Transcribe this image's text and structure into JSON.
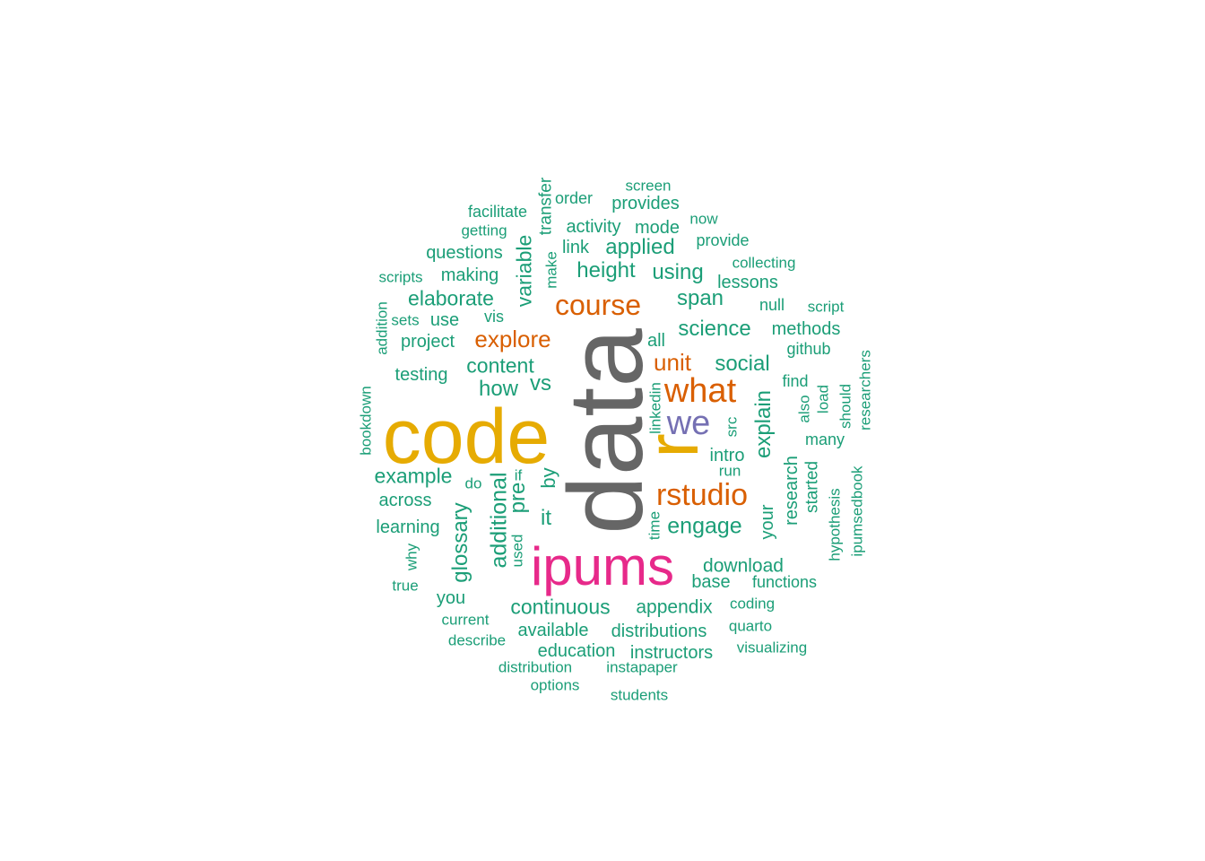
{
  "colors": {
    "green": "#1b9e77",
    "orange": "#d95f02",
    "purple": "#7570b3",
    "magenta": "#e7298a",
    "gold": "#e6ab02",
    "gray": "#666666"
  },
  "words": [
    {
      "text": "data",
      "color": "gray",
      "rotated": true
    },
    {
      "text": "code",
      "color": "gold",
      "rotated": false
    },
    {
      "text": "ipums",
      "color": "magenta",
      "rotated": false
    },
    {
      "text": "r",
      "color": "gold",
      "rotated": true
    },
    {
      "text": "we",
      "color": "purple",
      "rotated": false
    },
    {
      "text": "what",
      "color": "orange",
      "rotated": false
    },
    {
      "text": "rstudio",
      "color": "orange",
      "rotated": false
    },
    {
      "text": "course",
      "color": "orange",
      "rotated": false
    },
    {
      "text": "explore",
      "color": "orange",
      "rotated": false
    },
    {
      "text": "unit",
      "color": "orange",
      "rotated": false
    },
    {
      "text": "engage",
      "color": "green",
      "rotated": false
    },
    {
      "text": "additional",
      "color": "green",
      "rotated": true
    },
    {
      "text": "glossary",
      "color": "green",
      "rotated": true
    },
    {
      "text": "continuous",
      "color": "green",
      "rotated": false
    },
    {
      "text": "appendix",
      "color": "green",
      "rotated": false
    },
    {
      "text": "download",
      "color": "green",
      "rotated": false
    },
    {
      "text": "example",
      "color": "green",
      "rotated": false
    },
    {
      "text": "content",
      "color": "green",
      "rotated": false
    },
    {
      "text": "elaborate",
      "color": "green",
      "rotated": false
    },
    {
      "text": "variable",
      "color": "green",
      "rotated": true
    },
    {
      "text": "applied",
      "color": "green",
      "rotated": false
    },
    {
      "text": "height",
      "color": "green",
      "rotated": false
    },
    {
      "text": "using",
      "color": "green",
      "rotated": false
    },
    {
      "text": "span",
      "color": "green",
      "rotated": false
    },
    {
      "text": "science",
      "color": "green",
      "rotated": false
    },
    {
      "text": "social",
      "color": "green",
      "rotated": false
    },
    {
      "text": "explain",
      "color": "green",
      "rotated": true
    },
    {
      "text": "how",
      "color": "green",
      "rotated": false
    },
    {
      "text": "vs",
      "color": "green",
      "rotated": false
    },
    {
      "text": "pre",
      "color": "green",
      "rotated": true
    },
    {
      "text": "it",
      "color": "green",
      "rotated": false
    },
    {
      "text": "by",
      "color": "green",
      "rotated": true
    },
    {
      "text": "your",
      "color": "green",
      "rotated": true
    },
    {
      "text": "research",
      "color": "green",
      "rotated": true
    },
    {
      "text": "started",
      "color": "green",
      "rotated": true
    },
    {
      "text": "intro",
      "color": "green",
      "rotated": false
    },
    {
      "text": "questions",
      "color": "green",
      "rotated": false
    },
    {
      "text": "making",
      "color": "green",
      "rotated": false
    },
    {
      "text": "project",
      "color": "green",
      "rotated": false
    },
    {
      "text": "testing",
      "color": "green",
      "rotated": false
    },
    {
      "text": "use",
      "color": "green",
      "rotated": false
    },
    {
      "text": "across",
      "color": "green",
      "rotated": false
    },
    {
      "text": "learning",
      "color": "green",
      "rotated": false
    },
    {
      "text": "you",
      "color": "green",
      "rotated": false
    },
    {
      "text": "available",
      "color": "green",
      "rotated": false
    },
    {
      "text": "distributions",
      "color": "green",
      "rotated": false
    },
    {
      "text": "education",
      "color": "green",
      "rotated": false
    },
    {
      "text": "instructors",
      "color": "green",
      "rotated": false
    },
    {
      "text": "base",
      "color": "green",
      "rotated": false
    },
    {
      "text": "methods",
      "color": "green",
      "rotated": false
    },
    {
      "text": "lessons",
      "color": "green",
      "rotated": false
    },
    {
      "text": "provides",
      "color": "green",
      "rotated": false
    },
    {
      "text": "activity",
      "color": "green",
      "rotated": false
    },
    {
      "text": "mode",
      "color": "green",
      "rotated": false
    },
    {
      "text": "link",
      "color": "green",
      "rotated": false
    },
    {
      "text": "provide",
      "color": "green",
      "rotated": false
    },
    {
      "text": "functions",
      "color": "green",
      "rotated": false
    },
    {
      "text": "find",
      "color": "green",
      "rotated": false
    },
    {
      "text": "many",
      "color": "green",
      "rotated": false
    },
    {
      "text": "github",
      "color": "green",
      "rotated": false
    },
    {
      "text": "facilitate",
      "color": "green",
      "rotated": false
    },
    {
      "text": "getting",
      "color": "green",
      "rotated": false
    },
    {
      "text": "transfer",
      "color": "green",
      "rotated": true
    },
    {
      "text": "order",
      "color": "green",
      "rotated": false
    },
    {
      "text": "screen",
      "color": "green",
      "rotated": false
    },
    {
      "text": "now",
      "color": "green",
      "rotated": false
    },
    {
      "text": "collecting",
      "color": "green",
      "rotated": false
    },
    {
      "text": "scripts",
      "color": "green",
      "rotated": false
    },
    {
      "text": "make",
      "color": "green",
      "rotated": true
    },
    {
      "text": "null",
      "color": "green",
      "rotated": false
    },
    {
      "text": "script",
      "color": "green",
      "rotated": false
    },
    {
      "text": "sets",
      "color": "green",
      "rotated": false
    },
    {
      "text": "vis",
      "color": "green",
      "rotated": false
    },
    {
      "text": "all",
      "color": "green",
      "rotated": false
    },
    {
      "text": "addition",
      "color": "green",
      "rotated": true
    },
    {
      "text": "researchers",
      "color": "green",
      "rotated": true
    },
    {
      "text": "bookdown",
      "color": "green",
      "rotated": true
    },
    {
      "text": "linkedin",
      "color": "green",
      "rotated": true
    },
    {
      "text": "src",
      "color": "green",
      "rotated": true
    },
    {
      "text": "also",
      "color": "green",
      "rotated": true
    },
    {
      "text": "load",
      "color": "green",
      "rotated": true
    },
    {
      "text": "should",
      "color": "green",
      "rotated": true
    },
    {
      "text": "run",
      "color": "green",
      "rotated": false
    },
    {
      "text": "if",
      "color": "green",
      "rotated": false
    },
    {
      "text": "do",
      "color": "green",
      "rotated": false
    },
    {
      "text": "time",
      "color": "green",
      "rotated": true
    },
    {
      "text": "used",
      "color": "green",
      "rotated": true
    },
    {
      "text": "why",
      "color": "green",
      "rotated": true
    },
    {
      "text": "true",
      "color": "green",
      "rotated": false
    },
    {
      "text": "current",
      "color": "green",
      "rotated": false
    },
    {
      "text": "describe",
      "color": "green",
      "rotated": false
    },
    {
      "text": "distribution",
      "color": "green",
      "rotated": false
    },
    {
      "text": "options",
      "color": "green",
      "rotated": false
    },
    {
      "text": "instapaper",
      "color": "green",
      "rotated": false
    },
    {
      "text": "students",
      "color": "green",
      "rotated": false
    },
    {
      "text": "coding",
      "color": "green",
      "rotated": false
    },
    {
      "text": "quarto",
      "color": "green",
      "rotated": false
    },
    {
      "text": "visualizing",
      "color": "green",
      "rotated": false
    },
    {
      "text": "hypothesis",
      "color": "green",
      "rotated": true
    },
    {
      "text": "ipumsedbook",
      "color": "green",
      "rotated": true
    }
  ]
}
